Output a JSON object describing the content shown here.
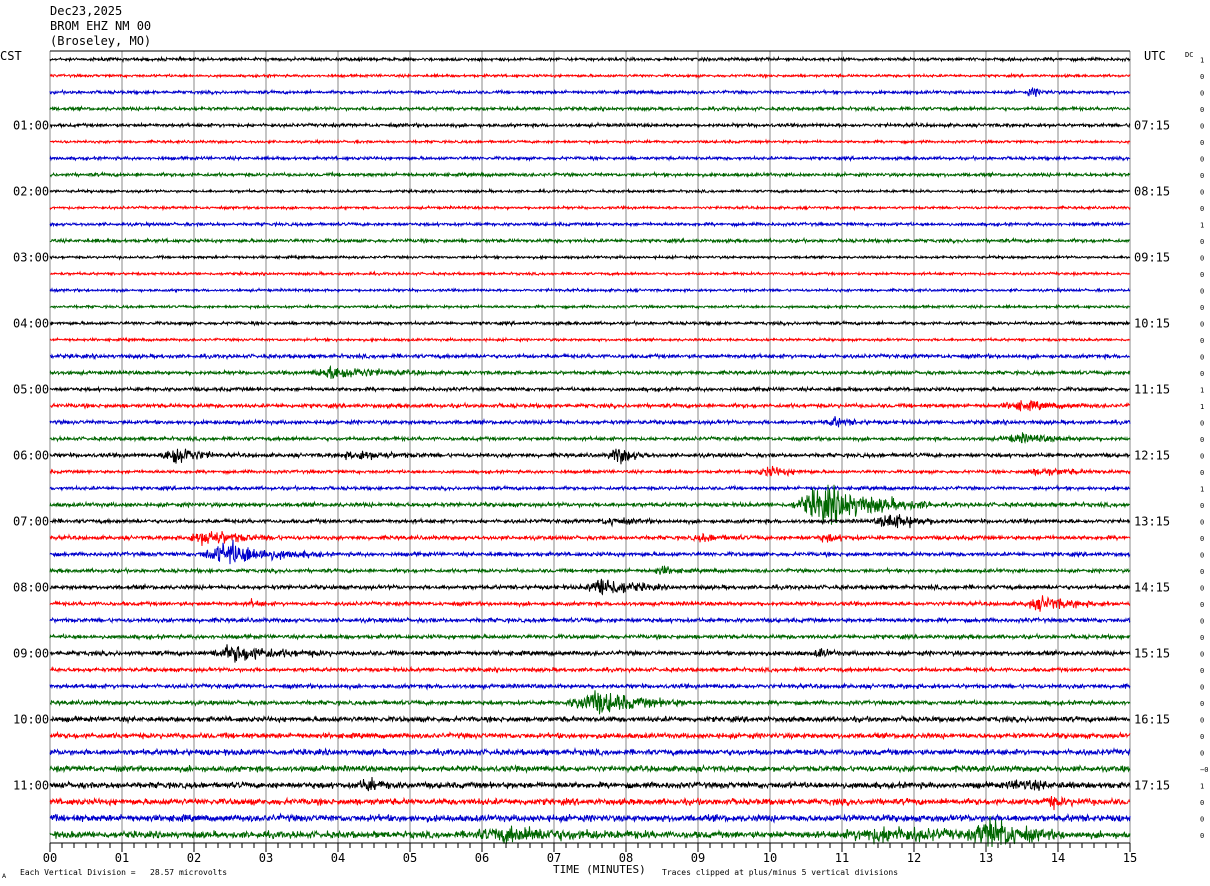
{
  "header": {
    "date": "Dec23,2025",
    "station": "BROM EHZ NM 00",
    "location": "(Broseley, MO)"
  },
  "left_timezone": "CST",
  "right_timezone": "UTC",
  "dc_label": "DC",
  "footer": {
    "scale_note": "Each Vertical Division =   28.57 microvolts",
    "xlabel": "TIME (MINUTES)",
    "clip_note": "Traces clipped at plus/minus 5 vertical divisions",
    "corner_mark": "A"
  },
  "chart_data": {
    "type": "line",
    "title": "Dec23,2025",
    "xlabel": "TIME (MINUTES)",
    "xlim": [
      0,
      15
    ],
    "x_ticks": [
      "00",
      "01",
      "02",
      "03",
      "04",
      "05",
      "06",
      "07",
      "08",
      "09",
      "10",
      "11",
      "12",
      "13",
      "14",
      "15"
    ],
    "num_traces": 48,
    "minutes_per_line": 15,
    "trace_colors": [
      "#000000",
      "#ff0000",
      "#0000cc",
      "#006600"
    ],
    "left_labels": [
      {
        "trace": 0,
        "text": ""
      },
      {
        "trace": 4,
        "text": "01:00"
      },
      {
        "trace": 8,
        "text": "02:00"
      },
      {
        "trace": 12,
        "text": "03:00"
      },
      {
        "trace": 16,
        "text": "04:00"
      },
      {
        "trace": 20,
        "text": "05:00"
      },
      {
        "trace": 24,
        "text": "06:00"
      },
      {
        "trace": 28,
        "text": "07:00"
      },
      {
        "trace": 32,
        "text": "08:00"
      },
      {
        "trace": 36,
        "text": "09:00"
      },
      {
        "trace": 40,
        "text": "10:00"
      },
      {
        "trace": 44,
        "text": "11:00"
      }
    ],
    "right_labels": [
      {
        "trace": 4,
        "text": "07:15"
      },
      {
        "trace": 8,
        "text": "08:15"
      },
      {
        "trace": 12,
        "text": "09:15"
      },
      {
        "trace": 16,
        "text": "10:15"
      },
      {
        "trace": 20,
        "text": "11:15"
      },
      {
        "trace": 24,
        "text": "12:15"
      },
      {
        "trace": 28,
        "text": "13:15"
      },
      {
        "trace": 32,
        "text": "14:15"
      },
      {
        "trace": 36,
        "text": "15:15"
      },
      {
        "trace": 40,
        "text": "16:15"
      },
      {
        "trace": 44,
        "text": "17:15"
      }
    ],
    "dc_offsets": [
      "1",
      "0",
      "0",
      "0",
      "0",
      "0",
      "0",
      "0",
      "0",
      "0",
      "1",
      "0",
      "0",
      "0",
      "0",
      "0",
      "0",
      "0",
      "0",
      "0",
      "1",
      "1",
      "0",
      "0",
      "0",
      "0",
      "1",
      "0",
      "0",
      "0",
      "0",
      "0",
      "0",
      "0",
      "0",
      "0",
      "0",
      "0",
      "0",
      "0",
      "0",
      "0",
      "0",
      "−0",
      "1",
      "0",
      "0",
      "0"
    ],
    "noise_levels": [
      1.2,
      1,
      1.2,
      1.3,
      1.3,
      1,
      1.2,
      1.3,
      1,
      1,
      1.2,
      1.3,
      1,
      1,
      1,
      1,
      1.2,
      1,
      1.5,
      1.4,
      1.4,
      1.5,
      1.5,
      1.4,
      1.5,
      1.2,
      1.3,
      1.6,
      1.5,
      1.5,
      1.5,
      1.4,
      1.6,
      1.5,
      1.6,
      1.5,
      1.7,
      1.5,
      1.6,
      1.6,
      2,
      2,
      2.2,
      2.2,
      2.3,
      2.4,
      2.6,
      2.6
    ],
    "events": [
      {
        "trace": 2,
        "minute": 13.65,
        "amplitude": 3,
        "duration": 0.3
      },
      {
        "trace": 19,
        "minute": 4.0,
        "amplitude": 5,
        "duration": 1.2
      },
      {
        "trace": 21,
        "minute": 13.5,
        "amplitude": 3,
        "duration": 1.0
      },
      {
        "trace": 22,
        "minute": 10.9,
        "amplitude": 3,
        "duration": 0.5
      },
      {
        "trace": 23,
        "minute": 13.5,
        "amplitude": 3,
        "duration": 1.0
      },
      {
        "trace": 24,
        "minute": 1.75,
        "amplitude": 9,
        "duration": 0.6
      },
      {
        "trace": 24,
        "minute": 7.9,
        "amplitude": 6,
        "duration": 0.5
      },
      {
        "trace": 24,
        "minute": 4.3,
        "amplitude": 3,
        "duration": 1.0
      },
      {
        "trace": 25,
        "minute": 10.0,
        "amplitude": 4,
        "duration": 0.6
      },
      {
        "trace": 25,
        "minute": 13.8,
        "amplitude": 2.5,
        "duration": 1.0
      },
      {
        "trace": 27,
        "minute": 10.8,
        "amplitude": 15,
        "duration": 1.5
      },
      {
        "trace": 28,
        "minute": 11.7,
        "amplitude": 6,
        "duration": 0.8
      },
      {
        "trace": 28,
        "minute": 7.8,
        "amplitude": 2.5,
        "duration": 0.6
      },
      {
        "trace": 29,
        "minute": 2.2,
        "amplitude": 6,
        "duration": 1.0
      },
      {
        "trace": 29,
        "minute": 9.1,
        "amplitude": 2.5,
        "duration": 0.6
      },
      {
        "trace": 29,
        "minute": 10.8,
        "amplitude": 2.5,
        "duration": 0.5
      },
      {
        "trace": 30,
        "minute": 2.5,
        "amplitude": 9,
        "duration": 1.3
      },
      {
        "trace": 31,
        "minute": 8.5,
        "amplitude": 3,
        "duration": 0.4
      },
      {
        "trace": 32,
        "minute": 7.7,
        "amplitude": 8,
        "duration": 0.8
      },
      {
        "trace": 33,
        "minute": 2.8,
        "amplitude": 2.5,
        "duration": 0.2
      },
      {
        "trace": 33,
        "minute": 13.8,
        "amplitude": 5,
        "duration": 0.9
      },
      {
        "trace": 36,
        "minute": 2.6,
        "amplitude": 6,
        "duration": 1.3
      },
      {
        "trace": 36,
        "minute": 10.7,
        "amplitude": 3,
        "duration": 0.3
      },
      {
        "trace": 39,
        "minute": 7.6,
        "amplitude": 9,
        "duration": 1.3
      },
      {
        "trace": 44,
        "minute": 4.4,
        "amplitude": 4,
        "duration": 0.5
      },
      {
        "trace": 44,
        "minute": 13.5,
        "amplitude": 3,
        "duration": 0.8
      },
      {
        "trace": 45,
        "minute": 13.9,
        "amplitude": 3,
        "duration": 0.5
      },
      {
        "trace": 47,
        "minute": 6.4,
        "amplitude": 5,
        "duration": 2.0
      },
      {
        "trace": 47,
        "minute": 11.6,
        "amplitude": 5,
        "duration": 2.0
      },
      {
        "trace": 47,
        "minute": 13.1,
        "amplitude": 11,
        "duration": 1.0
      }
    ]
  }
}
